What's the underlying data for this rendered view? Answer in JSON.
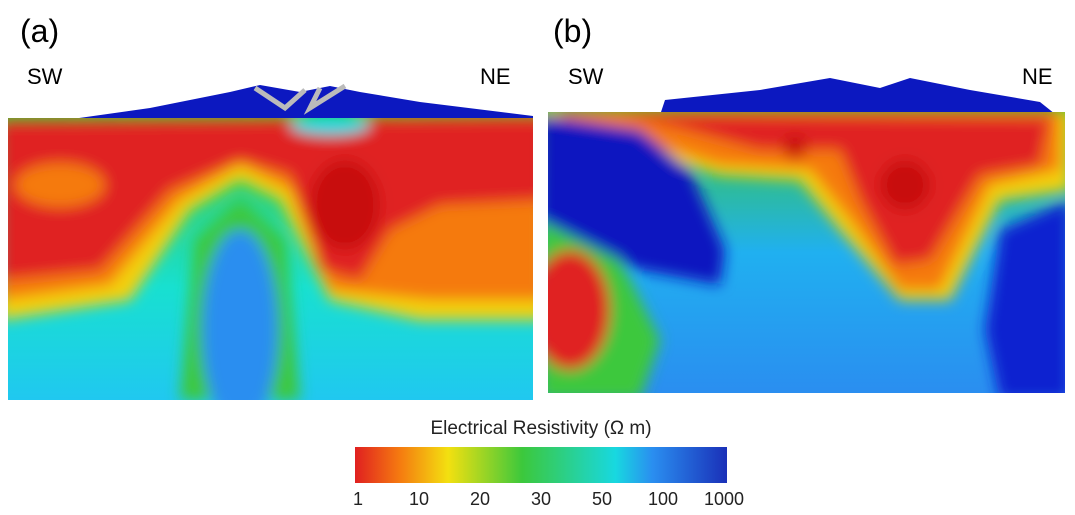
{
  "panels": [
    {
      "label": "(a)",
      "left": "SW",
      "right": "NE"
    },
    {
      "label": "(b)",
      "left": "SW",
      "right": "NE"
    }
  ],
  "colorbar": {
    "title": "Electrical Resistivity (Ω m)",
    "ticks": [
      1,
      10,
      20,
      30,
      50,
      100,
      1000
    ]
  }
}
